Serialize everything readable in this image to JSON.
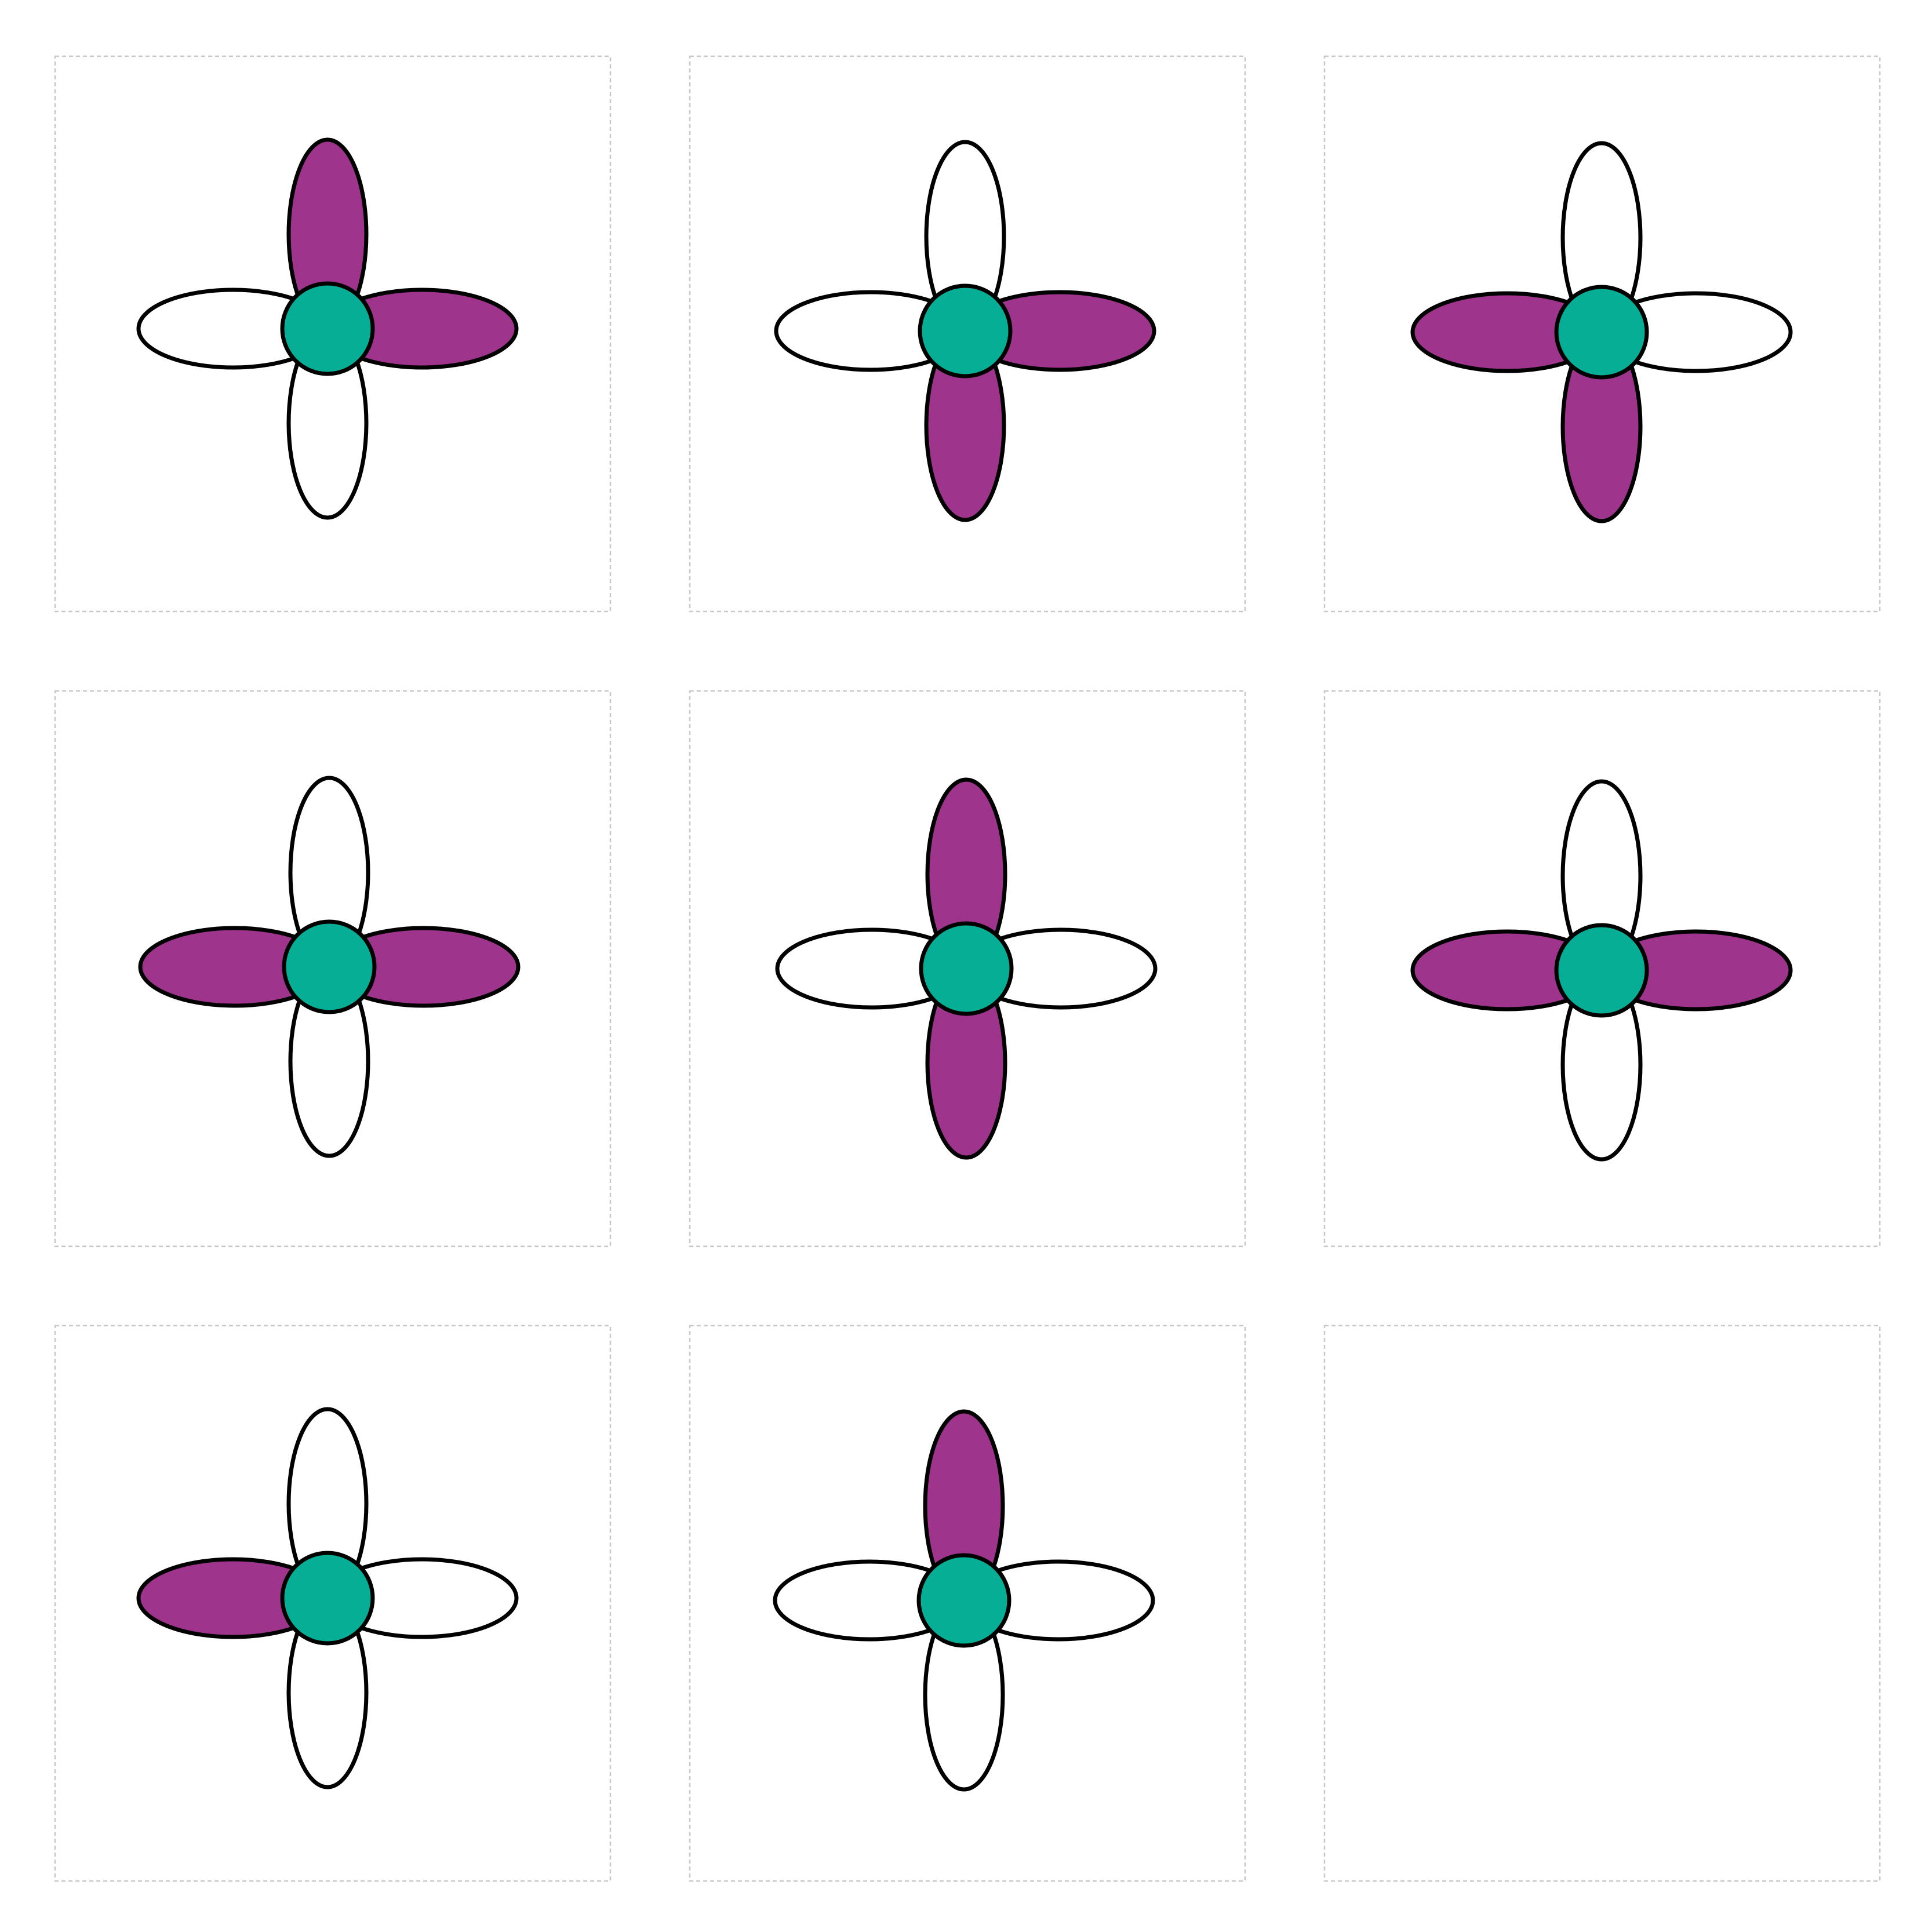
{
  "colors": {
    "filled_petal": "#9e348c",
    "empty_petal": "#ffffff",
    "center": "#07ae96",
    "outline": "#000000",
    "cell_border": "#c8c8c8"
  },
  "grid": {
    "rows": 3,
    "columns": 3,
    "cells": [
      {
        "icon": "flower-icon",
        "petals": {
          "top": true,
          "right": true,
          "bottom": false,
          "left": false
        }
      },
      {
        "icon": "flower-icon",
        "petals": {
          "top": false,
          "right": true,
          "bottom": true,
          "left": false
        }
      },
      {
        "icon": "flower-icon",
        "petals": {
          "top": false,
          "right": false,
          "bottom": true,
          "left": true
        }
      },
      {
        "icon": "flower-icon",
        "petals": {
          "top": false,
          "right": true,
          "bottom": false,
          "left": true
        }
      },
      {
        "icon": "flower-icon",
        "petals": {
          "top": true,
          "right": false,
          "bottom": true,
          "left": false
        }
      },
      {
        "icon": "flower-icon",
        "petals": {
          "top": false,
          "right": true,
          "bottom": false,
          "left": true
        }
      },
      {
        "icon": "flower-icon",
        "petals": {
          "top": false,
          "right": false,
          "bottom": false,
          "left": true
        }
      },
      {
        "icon": "flower-icon",
        "petals": {
          "top": true,
          "right": false,
          "bottom": false,
          "left": false
        }
      },
      {
        "icon": "empty-cell",
        "petals": null
      }
    ]
  }
}
